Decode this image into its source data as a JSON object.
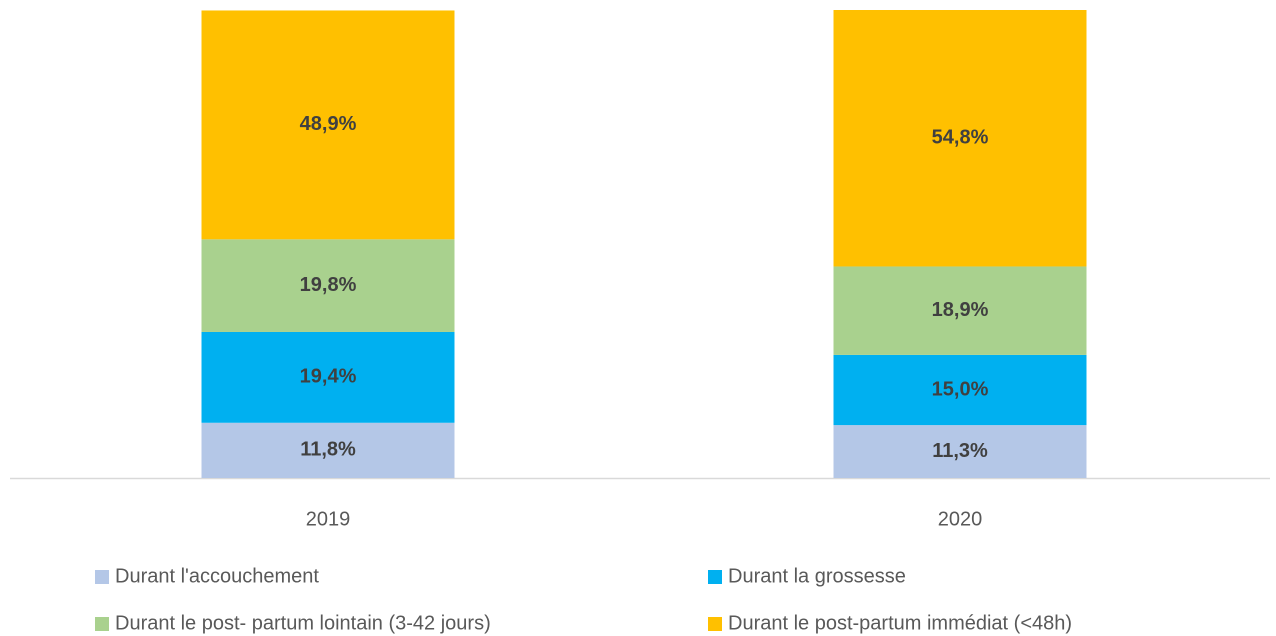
{
  "chart_data": {
    "type": "stacked_bar",
    "categories": [
      "2019",
      "2020"
    ],
    "ylim": [
      0,
      100
    ],
    "legend": "bottom",
    "series": [
      {
        "name": "Durant l'accouchement",
        "color": "#b4c7e7",
        "values": [
          11.8,
          11.3
        ],
        "value_labels": [
          "11,8%",
          "11,3%"
        ]
      },
      {
        "name": "Durant la grossesse",
        "color": "#00b0f0",
        "values": [
          19.4,
          15.0
        ],
        "value_labels": [
          "19,4%",
          "15,0%"
        ]
      },
      {
        "name": "Durant le post- partum lointain (3-42 jours)",
        "color": "#a9d18e",
        "values": [
          19.8,
          18.9
        ],
        "value_labels": [
          "19,8%",
          "18,9%"
        ]
      },
      {
        "name": "Durant le post-partum immédiat (<48h)",
        "color": "#ffc000",
        "values": [
          48.9,
          54.8
        ],
        "value_labels": [
          "48,9%",
          "54,8%"
        ]
      }
    ]
  }
}
